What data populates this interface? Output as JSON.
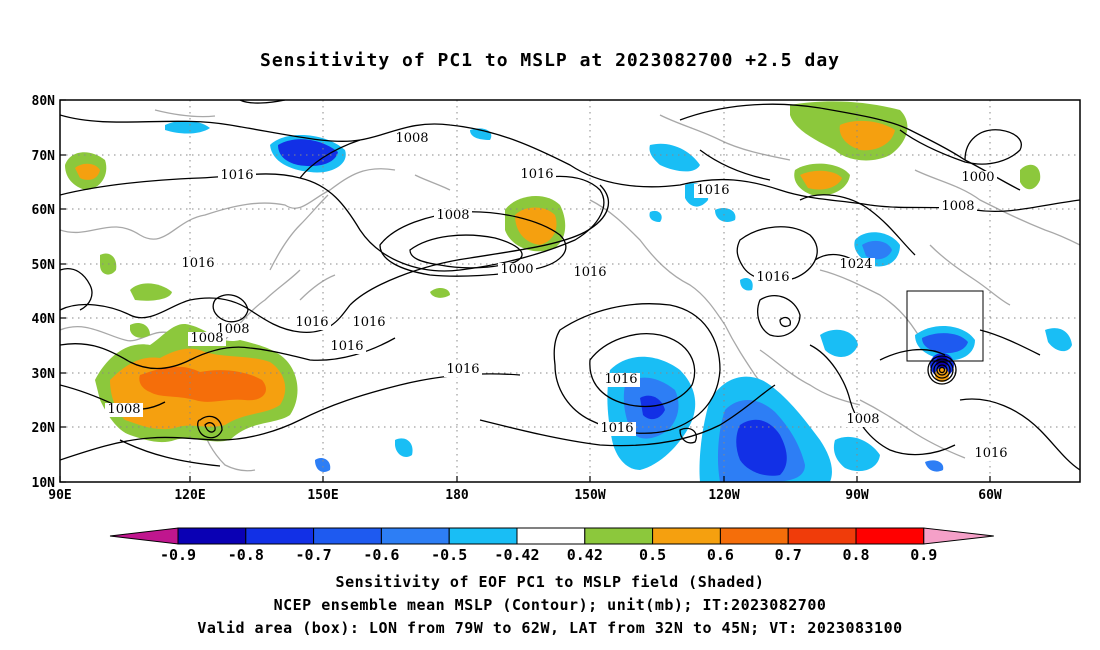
{
  "title": "Sensitivity of PC1 to MSLP at 2023082700 +2.5 day",
  "axes": {
    "lat_ticks": [
      "10N",
      "20N",
      "30N",
      "40N",
      "50N",
      "60N",
      "70N",
      "80N"
    ],
    "lon_ticks": [
      "90E",
      "120E",
      "150E",
      "180",
      "150W",
      "120W",
      "90W",
      "60W"
    ]
  },
  "contour_labels": [
    {
      "text": "1008"
    },
    {
      "text": "1016"
    },
    {
      "text": "1008"
    },
    {
      "text": "1016"
    },
    {
      "text": "1016"
    },
    {
      "text": "1000"
    },
    {
      "text": "1016"
    },
    {
      "text": "1016"
    },
    {
      "text": "1000"
    },
    {
      "text": "1008"
    },
    {
      "text": "1016"
    },
    {
      "text": "1016"
    },
    {
      "text": "1008"
    },
    {
      "text": "1016"
    },
    {
      "text": "1008"
    },
    {
      "text": "1016"
    },
    {
      "text": "1016"
    },
    {
      "text": "1024"
    },
    {
      "text": "1008"
    },
    {
      "text": "1016"
    },
    {
      "text": "1008"
    },
    {
      "text": "1016"
    },
    {
      "text": "1016"
    }
  ],
  "colorbar": {
    "labels": [
      "-0.9",
      "-0.8",
      "-0.7",
      "-0.6",
      "-0.5",
      "-0.42",
      "0.42",
      "0.5",
      "0.6",
      "0.7",
      "0.8",
      "0.9"
    ],
    "colors": [
      "#c0168e",
      "#0a00b4",
      "#1230e6",
      "#1e5af0",
      "#2d7ef5",
      "#19bef5",
      "#ffffff",
      "#8cc83c",
      "#f5a00f",
      "#f56e0a",
      "#f03c0a",
      "#ff0000",
      "#f5a0c8"
    ]
  },
  "captions": {
    "line1": "Sensitivity of EOF PC1 to MSLP field (Shaded)",
    "line2": "NCEP ensemble mean MSLP (Contour); unit(mb); IT:2023082700",
    "line3": "Valid area (box): LON from 79W to 62W, LAT from 32N to 45N; VT: 2023083100"
  }
}
